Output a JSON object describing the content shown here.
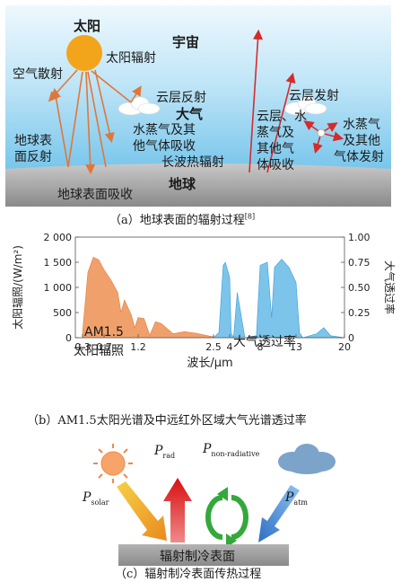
{
  "panel_a": {
    "sun": "太阳",
    "universe": "宇宙",
    "sun_radiation": "太阳辐射",
    "air_scatter": "空气散射",
    "cloud_reflect": "云层反射",
    "cloud_emit": "云层发射",
    "atmosphere": "大气",
    "ground_reflect_1": "地球表",
    "ground_reflect_2": "面反射",
    "vapor_absorb_1": "水蒸气及其",
    "vapor_absorb_2": "他气体吸收",
    "longwave": "长波热辐射",
    "cloud_vapor_1": "云层、水",
    "cloud_vapor_2": "蒸气及",
    "cloud_vapor_3": "其他气",
    "cloud_vapor_4": "体吸收",
    "vapor_emit_1": "水蒸气",
    "vapor_emit_2": "及其他",
    "vapor_emit_3": "气体发射",
    "earth": "地球",
    "earth_absorb": "地球表面吸收",
    "caption": "（a）地球表面的辐射过程",
    "caption_ref": "[8]"
  },
  "panel_b": {
    "caption": "（b）AM1.5太阳光谱及中远红外区域大气光谱透过率",
    "spectrum_label_1": "AM1.5",
    "spectrum_label_2": "太阳辐照",
    "transmit_label": "大气透过率"
  },
  "chart_data": {
    "type": "area",
    "xlabel": "波长/μm",
    "ylabel_left": "太阳辐照/(W/m²)",
    "ylabel_right": "大气透过率",
    "x_ticks": [
      "0.3",
      "0.7",
      "1.2",
      "2.5",
      "4",
      "8",
      "13",
      "20"
    ],
    "y_left_ticks": [
      "0",
      "500",
      "1 000",
      "1 500",
      "2 000"
    ],
    "y_right_ticks": [
      "0",
      "0.25",
      "0.50",
      "0.75",
      "1.00"
    ],
    "ylim_left": [
      0,
      2000
    ],
    "ylim_right": [
      0,
      1
    ],
    "series": [
      {
        "name": "AM1.5 太阳辐照",
        "color": "#f0a16b",
        "x": [
          0.3,
          0.4,
          0.5,
          0.6,
          0.7,
          0.8,
          0.9,
          0.95,
          1.0,
          1.1,
          1.15,
          1.2,
          1.3,
          1.4,
          1.5,
          1.6,
          1.8,
          2.0,
          2.2,
          2.4,
          2.5
        ],
        "values": [
          100,
          1300,
          1600,
          1550,
          1350,
          1150,
          900,
          500,
          750,
          450,
          200,
          400,
          380,
          50,
          320,
          280,
          80,
          120,
          90,
          40,
          20
        ]
      },
      {
        "name": "大气透过率",
        "color": "#7cc4ea",
        "x": [
          2.5,
          3.0,
          3.4,
          3.6,
          4.0,
          4.2,
          4.5,
          5.0,
          6.0,
          7.5,
          8.0,
          9.0,
          9.6,
          10,
          11,
          12,
          13,
          13.5,
          14,
          16,
          17,
          18,
          20
        ],
        "values": [
          0,
          0.05,
          0.72,
          0.75,
          0.6,
          0.05,
          0,
          0.45,
          0,
          0.02,
          0.72,
          0.75,
          0.2,
          0.7,
          0.78,
          0.7,
          0.55,
          0.05,
          0,
          0.04,
          0.1,
          0.02,
          0
        ]
      }
    ]
  },
  "panel_c": {
    "p_solar_main": "P",
    "p_solar_sub": "solar",
    "p_rad_main": "P",
    "p_rad_sub": "rad",
    "p_nonrad_main": "P",
    "p_nonrad_sub": "non-radiative",
    "p_atm_main": "P",
    "p_atm_sub": "atm",
    "surface": "辐射制冷表面",
    "caption": "（c）辐射制冷表面传热过程"
  },
  "colors": {
    "sky_top": "#d8effb",
    "sky_bottom": "#8fd0ef",
    "ground": "#a6a6a6",
    "sun": "#f2a51a",
    "arrow_orange": "#e0773a",
    "arrow_red": "#d62b2b",
    "solar_area": "#f0a16b",
    "transmit_area": "#7cc4ea",
    "surface_gray": "#9e9e9e"
  }
}
